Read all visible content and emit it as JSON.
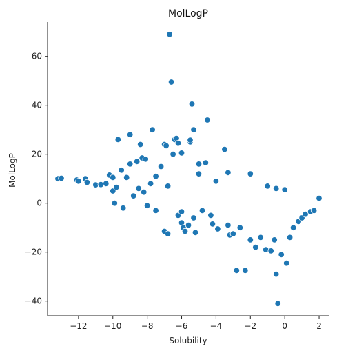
{
  "chart_data": {
    "type": "scatter",
    "title": "MolLogP",
    "xlabel": "Solubility",
    "ylabel": "MolLogP",
    "xlim": [
      -13.8,
      2.6
    ],
    "ylim": [
      -46,
      74
    ],
    "xticks": [
      -12,
      -10,
      -8,
      -6,
      -4,
      -2,
      0,
      2
    ],
    "yticks": [
      -40,
      -20,
      0,
      20,
      40,
      60
    ],
    "grid": false,
    "legend": "none",
    "color": "#1f77b4",
    "points": [
      [
        -13.2,
        10.0
      ],
      [
        -13.0,
        10.2
      ],
      [
        -12.1,
        9.5
      ],
      [
        -12.0,
        9.0
      ],
      [
        -11.6,
        10.0
      ],
      [
        -11.5,
        8.5
      ],
      [
        -11.0,
        7.5
      ],
      [
        -10.7,
        7.6
      ],
      [
        -10.4,
        8.0
      ],
      [
        -10.2,
        11.5
      ],
      [
        -10.0,
        10.5
      ],
      [
        -10.0,
        5.0
      ],
      [
        -9.9,
        0.0
      ],
      [
        -9.8,
        6.5
      ],
      [
        -9.7,
        26.0
      ],
      [
        -9.5,
        13.5
      ],
      [
        -9.2,
        10.5
      ],
      [
        -9.0,
        28.0
      ],
      [
        -9.0,
        16.0
      ],
      [
        -8.8,
        3.0
      ],
      [
        -8.6,
        17.0
      ],
      [
        -8.5,
        6.0
      ],
      [
        -8.4,
        24.0
      ],
      [
        -8.3,
        18.5
      ],
      [
        -8.1,
        18.0
      ],
      [
        -8.0,
        -1.0
      ],
      [
        -7.8,
        8.0
      ],
      [
        -7.7,
        30.0
      ],
      [
        -7.5,
        11.0
      ],
      [
        -7.2,
        15.0
      ],
      [
        -7.0,
        24.0
      ],
      [
        -7.0,
        -11.5
      ],
      [
        -6.9,
        23.5
      ],
      [
        -6.8,
        -12.5
      ],
      [
        -6.7,
        69.0
      ],
      [
        -6.6,
        49.5
      ],
      [
        -6.5,
        20.0
      ],
      [
        -6.4,
        26.0
      ],
      [
        -6.3,
        26.5
      ],
      [
        -6.2,
        24.5
      ],
      [
        -6.2,
        -5.0
      ],
      [
        -6.0,
        20.5
      ],
      [
        -6.0,
        -8.0
      ],
      [
        -5.9,
        -10.0
      ],
      [
        -5.8,
        -11.5
      ],
      [
        -5.6,
        -9.0
      ],
      [
        -5.5,
        25.0
      ],
      [
        -5.5,
        25.8
      ],
      [
        -5.4,
        40.5
      ],
      [
        -5.3,
        30.0
      ],
      [
        -5.2,
        -12.0
      ],
      [
        -5.0,
        16.0
      ],
      [
        -4.8,
        -3.0
      ],
      [
        -4.6,
        16.5
      ],
      [
        -4.5,
        34.0
      ],
      [
        -4.2,
        -8.5
      ],
      [
        -3.9,
        -10.5
      ],
      [
        -3.5,
        22.0
      ],
      [
        -3.3,
        -9.0
      ],
      [
        -3.2,
        -13.0
      ],
      [
        -3.0,
        -12.5
      ],
      [
        -2.8,
        -27.5
      ],
      [
        -2.6,
        -10.0
      ],
      [
        -2.3,
        -27.5
      ],
      [
        -2.0,
        -15.0
      ],
      [
        -1.7,
        -18.0
      ],
      [
        -1.4,
        -14.0
      ],
      [
        -1.1,
        -19.0
      ],
      [
        -0.8,
        -19.5
      ],
      [
        -0.6,
        -15.0
      ],
      [
        -0.5,
        -29.0
      ],
      [
        -0.4,
        -41.0
      ],
      [
        -0.2,
        -21.0
      ],
      [
        0.1,
        -24.5
      ],
      [
        0.3,
        -14.0
      ],
      [
        0.5,
        -10.0
      ],
      [
        0.8,
        -7.5
      ],
      [
        1.0,
        -6.0
      ],
      [
        1.2,
        -4.5
      ],
      [
        1.5,
        -3.5
      ],
      [
        1.7,
        -3.0
      ],
      [
        2.0,
        2.0
      ],
      [
        -2.0,
        12.0
      ],
      [
        -3.3,
        12.5
      ],
      [
        -1.0,
        7.0
      ],
      [
        -0.5,
        6.0
      ],
      [
        0.0,
        5.5
      ],
      [
        -6.8,
        7.0
      ],
      [
        -5.0,
        12.0
      ],
      [
        -4.0,
        9.0
      ],
      [
        -7.5,
        -3.0
      ],
      [
        -8.2,
        4.5
      ],
      [
        -9.4,
        -2.0
      ],
      [
        -6.0,
        -3.5
      ],
      [
        -5.3,
        -6.0
      ],
      [
        -4.3,
        -5.0
      ]
    ]
  }
}
